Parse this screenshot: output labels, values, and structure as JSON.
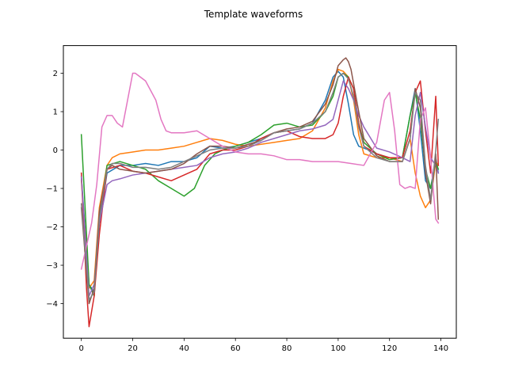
{
  "chart_data": {
    "type": "line",
    "title": "Template waveforms",
    "xlabel": "",
    "ylabel": "",
    "xlim": [
      -7,
      146
    ],
    "ylim": [
      -4.9,
      2.72
    ],
    "xticks": [
      0,
      20,
      40,
      60,
      80,
      100,
      120,
      140
    ],
    "yticks": [
      -4,
      -3,
      -2,
      -1,
      0,
      1,
      2
    ],
    "grid": false,
    "legend": "none",
    "series": [
      {
        "color": "#1f77b4",
        "x": [
          0,
          3,
          5,
          7,
          10,
          15,
          20,
          25,
          30,
          35,
          40,
          45,
          50,
          55,
          60,
          65,
          70,
          75,
          80,
          85,
          90,
          95,
          98,
          100,
          102,
          104,
          106,
          108,
          110,
          112,
          115,
          120,
          125,
          128,
          130,
          132,
          134,
          136,
          138,
          139
        ],
        "y": [
          -0.7,
          -3.5,
          -3.7,
          -1.9,
          -0.6,
          -0.4,
          -0.4,
          -0.35,
          -0.4,
          -0.3,
          -0.3,
          -0.2,
          0.1,
          0.05,
          0.1,
          0.2,
          0.3,
          0.45,
          0.5,
          0.55,
          0.7,
          1.3,
          1.9,
          2.05,
          1.9,
          1.2,
          0.4,
          0.1,
          0.05,
          0.0,
          -0.1,
          -0.2,
          -0.2,
          0.9,
          1.6,
          0.5,
          -0.8,
          -1.0,
          -0.2,
          -0.6
        ]
      },
      {
        "color": "#ff7f0e",
        "x": [
          0,
          3,
          5,
          7,
          10,
          12,
          15,
          20,
          25,
          30,
          35,
          40,
          45,
          50,
          55,
          60,
          65,
          70,
          75,
          80,
          85,
          90,
          95,
          98,
          100,
          102,
          104,
          106,
          108,
          110,
          115,
          120,
          125,
          128,
          130,
          132,
          134,
          136,
          138,
          139
        ],
        "y": [
          -0.8,
          -3.6,
          -3.4,
          -1.5,
          -0.4,
          -0.2,
          -0.1,
          -0.05,
          0.0,
          0.0,
          0.05,
          0.1,
          0.2,
          0.3,
          0.25,
          0.15,
          0.1,
          0.15,
          0.2,
          0.25,
          0.3,
          0.5,
          1.1,
          1.8,
          2.1,
          2.05,
          1.9,
          1.3,
          0.4,
          -0.1,
          -0.2,
          -0.2,
          -0.3,
          0.3,
          -0.6,
          -1.2,
          -1.5,
          -1.3,
          -0.3,
          -0.4
        ]
      },
      {
        "color": "#2ca02c",
        "x": [
          0,
          3,
          5,
          7,
          10,
          15,
          20,
          25,
          30,
          35,
          40,
          44,
          48,
          52,
          55,
          60,
          65,
          70,
          75,
          80,
          85,
          90,
          95,
          98,
          100,
          102,
          104,
          106,
          108,
          110,
          115,
          120,
          125,
          128,
          130,
          132,
          134,
          136,
          138,
          139
        ],
        "y": [
          0.4,
          -3.5,
          -3.8,
          -1.8,
          -0.4,
          -0.3,
          -0.4,
          -0.5,
          -0.8,
          -1.0,
          -1.2,
          -1.0,
          -0.4,
          -0.1,
          0.0,
          0.1,
          0.2,
          0.4,
          0.65,
          0.7,
          0.6,
          0.65,
          1.0,
          1.4,
          1.9,
          2.0,
          1.9,
          1.6,
          0.7,
          0.2,
          -0.1,
          -0.25,
          -0.2,
          0.9,
          1.5,
          0.8,
          -0.5,
          -1.0,
          -0.3,
          -0.5
        ]
      },
      {
        "color": "#d62728",
        "x": [
          0,
          2,
          3,
          5,
          7,
          10,
          15,
          20,
          25,
          30,
          35,
          40,
          45,
          50,
          55,
          60,
          65,
          70,
          75,
          80,
          85,
          90,
          95,
          98,
          100,
          102,
          104,
          106,
          108,
          110,
          115,
          120,
          125,
          128,
          130,
          132,
          134,
          136,
          138,
          139
        ],
        "y": [
          -0.6,
          -3.6,
          -4.6,
          -3.8,
          -2.2,
          -0.5,
          -0.4,
          -0.55,
          -0.6,
          -0.7,
          -0.8,
          -0.65,
          -0.5,
          -0.1,
          0.0,
          0.0,
          0.1,
          0.3,
          0.45,
          0.5,
          0.35,
          0.3,
          0.3,
          0.4,
          0.7,
          1.4,
          1.9,
          1.6,
          0.7,
          0.1,
          -0.1,
          -0.2,
          -0.2,
          0.5,
          1.5,
          1.8,
          0.5,
          -0.6,
          1.4,
          -0.4
        ]
      },
      {
        "color": "#9467bd",
        "x": [
          0,
          3,
          5,
          7,
          10,
          12,
          15,
          20,
          25,
          30,
          35,
          40,
          45,
          50,
          55,
          60,
          65,
          70,
          75,
          80,
          85,
          90,
          95,
          98,
          100,
          102,
          104,
          106,
          108,
          110,
          115,
          120,
          125,
          128,
          130,
          132,
          134,
          136,
          138,
          139
        ],
        "y": [
          -0.7,
          -3.8,
          -3.5,
          -1.9,
          -0.9,
          -0.8,
          -0.75,
          -0.65,
          -0.6,
          -0.55,
          -0.5,
          -0.45,
          -0.4,
          -0.2,
          -0.1,
          -0.05,
          0.05,
          0.2,
          0.3,
          0.4,
          0.5,
          0.55,
          0.65,
          0.8,
          1.3,
          1.8,
          1.6,
          1.3,
          0.9,
          0.6,
          0.05,
          -0.05,
          -0.2,
          -0.3,
          0.9,
          1.5,
          0.6,
          -0.2,
          -0.4,
          -0.6
        ]
      },
      {
        "color": "#8c564b",
        "x": [
          0,
          3,
          5,
          7,
          10,
          12,
          15,
          20,
          25,
          30,
          35,
          40,
          45,
          50,
          55,
          60,
          65,
          70,
          75,
          80,
          85,
          90,
          95,
          98,
          100,
          102,
          103,
          104,
          105,
          108,
          110,
          115,
          120,
          125,
          128,
          130,
          132,
          134,
          136,
          138,
          139
        ],
        "y": [
          -1.5,
          -4.0,
          -3.6,
          -1.6,
          -0.5,
          -0.4,
          -0.5,
          -0.55,
          -0.6,
          -0.55,
          -0.5,
          -0.35,
          -0.1,
          0.1,
          0.1,
          0.05,
          0.15,
          0.25,
          0.45,
          0.55,
          0.6,
          0.75,
          1.2,
          1.7,
          2.2,
          2.35,
          2.4,
          2.3,
          2.1,
          1.0,
          0.3,
          -0.15,
          -0.3,
          -0.3,
          0.3,
          1.6,
          1.1,
          -0.6,
          -1.4,
          -0.1,
          -1.8
        ]
      },
      {
        "color": "#e377c2",
        "x": [
          0,
          2,
          4,
          6,
          8,
          10,
          12,
          14,
          16,
          18,
          20,
          21,
          23,
          25,
          27,
          29,
          31,
          33,
          35,
          40,
          45,
          50,
          55,
          60,
          65,
          70,
          75,
          80,
          85,
          90,
          95,
          100,
          105,
          110,
          115,
          118,
          120,
          122,
          124,
          126,
          128,
          130,
          132,
          134,
          136,
          138,
          139
        ],
        "y": [
          -3.1,
          -2.5,
          -1.9,
          -0.9,
          0.6,
          0.9,
          0.9,
          0.7,
          0.6,
          1.3,
          2.0,
          2.0,
          1.9,
          1.8,
          1.55,
          1.3,
          0.8,
          0.5,
          0.45,
          0.45,
          0.5,
          0.3,
          0.1,
          -0.05,
          -0.1,
          -0.1,
          -0.15,
          -0.25,
          -0.25,
          -0.3,
          -0.3,
          -0.3,
          -0.35,
          -0.4,
          0.2,
          1.3,
          1.5,
          0.5,
          -0.9,
          -1.0,
          -0.95,
          -1.0,
          0.8,
          1.1,
          -0.2,
          -1.8,
          -1.9
        ]
      },
      {
        "color": "#7f7f7f",
        "x": [
          0,
          3,
          5,
          7,
          10,
          12,
          15,
          20,
          25,
          30,
          35,
          40,
          45,
          50,
          55,
          60,
          65,
          70,
          75,
          80,
          85,
          90,
          95,
          98,
          100,
          102,
          104,
          106,
          108,
          110,
          115,
          120,
          125,
          128,
          130,
          132,
          134,
          136,
          138,
          139
        ],
        "y": [
          -1.4,
          -3.9,
          -3.7,
          -1.8,
          -0.5,
          -0.35,
          -0.35,
          -0.45,
          -0.45,
          -0.5,
          -0.45,
          -0.3,
          -0.15,
          0.0,
          0.05,
          0.05,
          0.1,
          0.25,
          0.45,
          0.5,
          0.55,
          0.7,
          1.0,
          1.5,
          1.9,
          2.0,
          1.85,
          1.4,
          0.6,
          0.1,
          -0.2,
          -0.3,
          -0.3,
          0.3,
          1.5,
          1.3,
          -0.4,
          -1.3,
          0.0,
          0.8
        ]
      }
    ]
  }
}
